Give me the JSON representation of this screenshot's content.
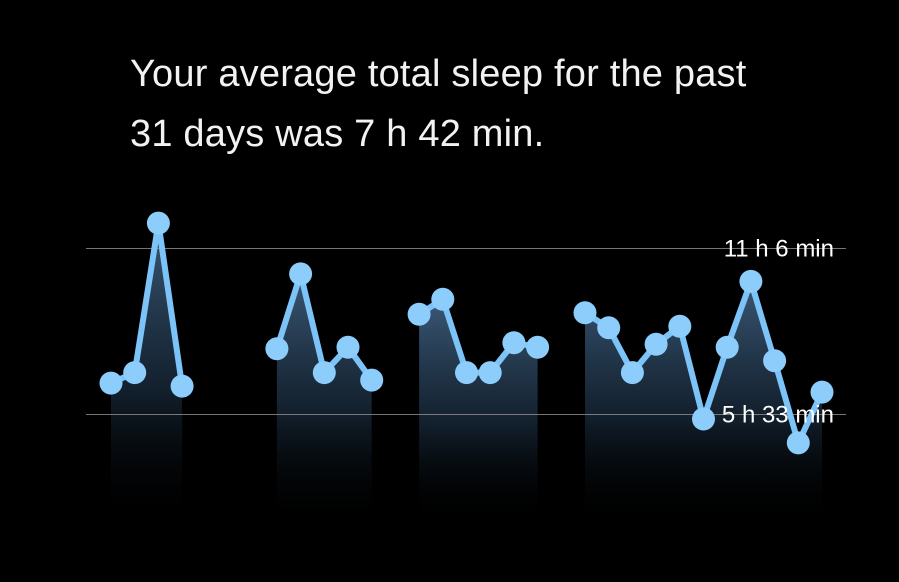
{
  "summary": {
    "line1": "Your average total sleep for the past",
    "line2": "31 days was 7 h 42 min."
  },
  "colors": {
    "background": "#000000",
    "line": "#7cc4f8",
    "point": "#8ccdfb",
    "gridline": "#8a8a8a",
    "text": "#ffffff"
  },
  "chart_data": {
    "type": "line",
    "title": "",
    "xlabel": "",
    "ylabel": "",
    "y_unit": "hours",
    "ylim": [
      1.3,
      12.1
    ],
    "grid": false,
    "reference_lines": [
      {
        "label": "11 h 6 min",
        "value": 11.1
      },
      {
        "label": "5 h 33 min",
        "value": 5.55
      }
    ],
    "x": [
      1,
      2,
      3,
      4,
      5,
      6,
      7,
      8,
      9,
      10,
      11,
      12,
      13,
      14,
      15,
      16,
      17,
      18,
      19,
      20,
      21,
      22,
      23,
      24,
      25,
      26,
      27,
      28,
      29,
      30,
      31
    ],
    "segments": [
      {
        "x": [
          1,
          2,
          3,
          4
        ],
        "values": [
          6.6,
          6.95,
          11.95,
          6.5
        ]
      },
      {
        "x": [
          8,
          9,
          10,
          11,
          12
        ],
        "values": [
          7.75,
          10.25,
          6.95,
          7.8,
          6.7
        ]
      },
      {
        "x": [
          14,
          15,
          16,
          17,
          18,
          19
        ],
        "values": [
          8.9,
          9.4,
          6.95,
          6.95,
          7.95,
          7.8
        ]
      },
      {
        "x": [
          21,
          22,
          23,
          24,
          25,
          26,
          27,
          28,
          29,
          30,
          31
        ],
        "values": [
          8.95,
          8.45,
          6.95,
          7.9,
          8.5,
          5.4,
          7.8,
          10.0,
          7.35,
          4.6,
          6.3
        ]
      }
    ]
  }
}
